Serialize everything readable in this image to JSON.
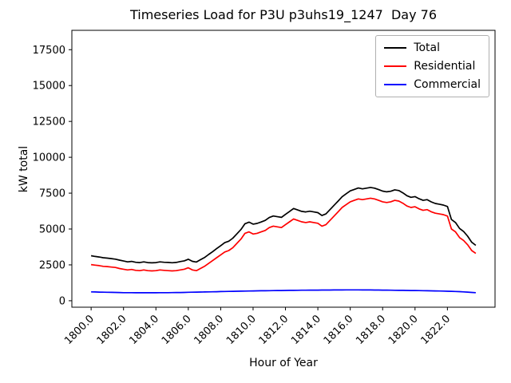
{
  "chart_data": {
    "type": "line",
    "title": "Timeseries Load for P3U p3uhs19_1247  Day 76",
    "xlabel": "Hour of Year",
    "ylabel": "kW total",
    "grid": false,
    "legend_position": "upper right",
    "xlim": [
      1798.81,
      1824.94
    ],
    "ylim": [
      -450,
      18850
    ],
    "yticks": [
      0,
      2500,
      5000,
      7500,
      10000,
      12500,
      15000,
      17500
    ],
    "xticks": [
      1800,
      1802,
      1804,
      1806,
      1808,
      1810,
      1812,
      1814,
      1816,
      1818,
      1820,
      1822
    ],
    "xtick_labels": [
      "1800.0",
      "1802.0",
      "1804.0",
      "1806.0",
      "1808.0",
      "1810.0",
      "1812.0",
      "1814.0",
      "1816.0",
      "1818.0",
      "1820.0",
      "1822.0"
    ],
    "x": [
      1800.0,
      1800.25,
      1800.5,
      1800.75,
      1801.0,
      1801.25,
      1801.5,
      1801.75,
      1802.0,
      1802.25,
      1802.5,
      1802.75,
      1803.0,
      1803.25,
      1803.5,
      1803.75,
      1804.0,
      1804.25,
      1804.5,
      1804.75,
      1805.0,
      1805.25,
      1805.5,
      1805.75,
      1806.0,
      1806.25,
      1806.5,
      1806.75,
      1807.0,
      1807.25,
      1807.5,
      1807.75,
      1808.0,
      1808.25,
      1808.5,
      1808.75,
      1809.0,
      1809.25,
      1809.5,
      1809.75,
      1810.0,
      1810.25,
      1810.5,
      1810.75,
      1811.0,
      1811.25,
      1811.5,
      1811.75,
      1812.0,
      1812.25,
      1812.5,
      1812.75,
      1813.0,
      1813.25,
      1813.5,
      1813.75,
      1814.0,
      1814.25,
      1814.5,
      1814.75,
      1815.0,
      1815.25,
      1815.5,
      1815.75,
      1816.0,
      1816.25,
      1816.5,
      1816.75,
      1817.0,
      1817.25,
      1817.5,
      1817.75,
      1818.0,
      1818.25,
      1818.5,
      1818.75,
      1819.0,
      1819.25,
      1819.5,
      1819.75,
      1820.0,
      1820.25,
      1820.5,
      1820.75,
      1821.0,
      1821.25,
      1821.5,
      1821.75,
      1822.0,
      1822.25,
      1822.5,
      1822.75,
      1823.0,
      1823.25,
      1823.5,
      1823.75
    ],
    "series": [
      {
        "name": "Total",
        "color": "#000000",
        "values": [
          3140,
          3090,
          3050,
          3000,
          2970,
          2940,
          2900,
          2830,
          2770,
          2710,
          2740,
          2680,
          2660,
          2710,
          2660,
          2640,
          2660,
          2710,
          2680,
          2670,
          2650,
          2670,
          2730,
          2780,
          2890,
          2750,
          2700,
          2860,
          3010,
          3220,
          3420,
          3630,
          3840,
          4050,
          4150,
          4360,
          4660,
          4970,
          5370,
          5480,
          5340,
          5390,
          5490,
          5600,
          5800,
          5910,
          5860,
          5810,
          6020,
          6220,
          6430,
          6330,
          6230,
          6190,
          6240,
          6190,
          6140,
          5940,
          6050,
          6350,
          6650,
          6950,
          7250,
          7460,
          7660,
          7760,
          7860,
          7800,
          7850,
          7900,
          7850,
          7750,
          7640,
          7590,
          7630,
          7730,
          7680,
          7520,
          7320,
          7210,
          7260,
          7110,
          7000,
          7050,
          6890,
          6780,
          6730,
          6670,
          6570,
          5660,
          5450,
          5040,
          4820,
          4500,
          4080,
          3860
        ]
      },
      {
        "name": "Residential",
        "color": "#ff0000",
        "values": [
          2520,
          2480,
          2450,
          2400,
          2380,
          2350,
          2320,
          2250,
          2200,
          2150,
          2180,
          2120,
          2100,
          2150,
          2100,
          2080,
          2100,
          2150,
          2120,
          2100,
          2080,
          2100,
          2150,
          2200,
          2300,
          2150,
          2100,
          2250,
          2400,
          2600,
          2800,
          3000,
          3200,
          3400,
          3500,
          3700,
          4000,
          4300,
          4700,
          4800,
          4650,
          4700,
          4800,
          4900,
          5100,
          5200,
          5150,
          5100,
          5300,
          5500,
          5700,
          5600,
          5500,
          5450,
          5500,
          5450,
          5400,
          5200,
          5300,
          5600,
          5900,
          6200,
          6500,
          6700,
          6900,
          7000,
          7100,
          7050,
          7100,
          7150,
          7100,
          7000,
          6900,
          6850,
          6900,
          7000,
          6950,
          6800,
          6600,
          6500,
          6550,
          6400,
          6300,
          6350,
          6200,
          6100,
          6050,
          6000,
          5900,
          5000,
          4800,
          4400,
          4200,
          3900,
          3500,
          3300
        ]
      },
      {
        "name": "Commercial",
        "color": "#0000ff",
        "values": [
          620,
          610,
          600,
          595,
          590,
          585,
          580,
          575,
          565,
          560,
          560,
          558,
          556,
          555,
          555,
          556,
          558,
          560,
          562,
          565,
          568,
          572,
          576,
          580,
          590,
          595,
          600,
          605,
          612,
          618,
          624,
          630,
          638,
          645,
          650,
          656,
          662,
          668,
          674,
          680,
          686,
          690,
          694,
          698,
          702,
          706,
          710,
          714,
          718,
          722,
          726,
          730,
          733,
          736,
          738,
          740,
          742,
          744,
          746,
          748,
          750,
          752,
          754,
          755,
          756,
          756,
          755,
          754,
          752,
          750,
          748,
          745,
          742,
          738,
          734,
          730,
          726,
          722,
          718,
          714,
          710,
          705,
          700,
          695,
          690,
          684,
          678,
          672,
          665,
          655,
          645,
          635,
          620,
          600,
          580,
          560
        ]
      }
    ]
  }
}
